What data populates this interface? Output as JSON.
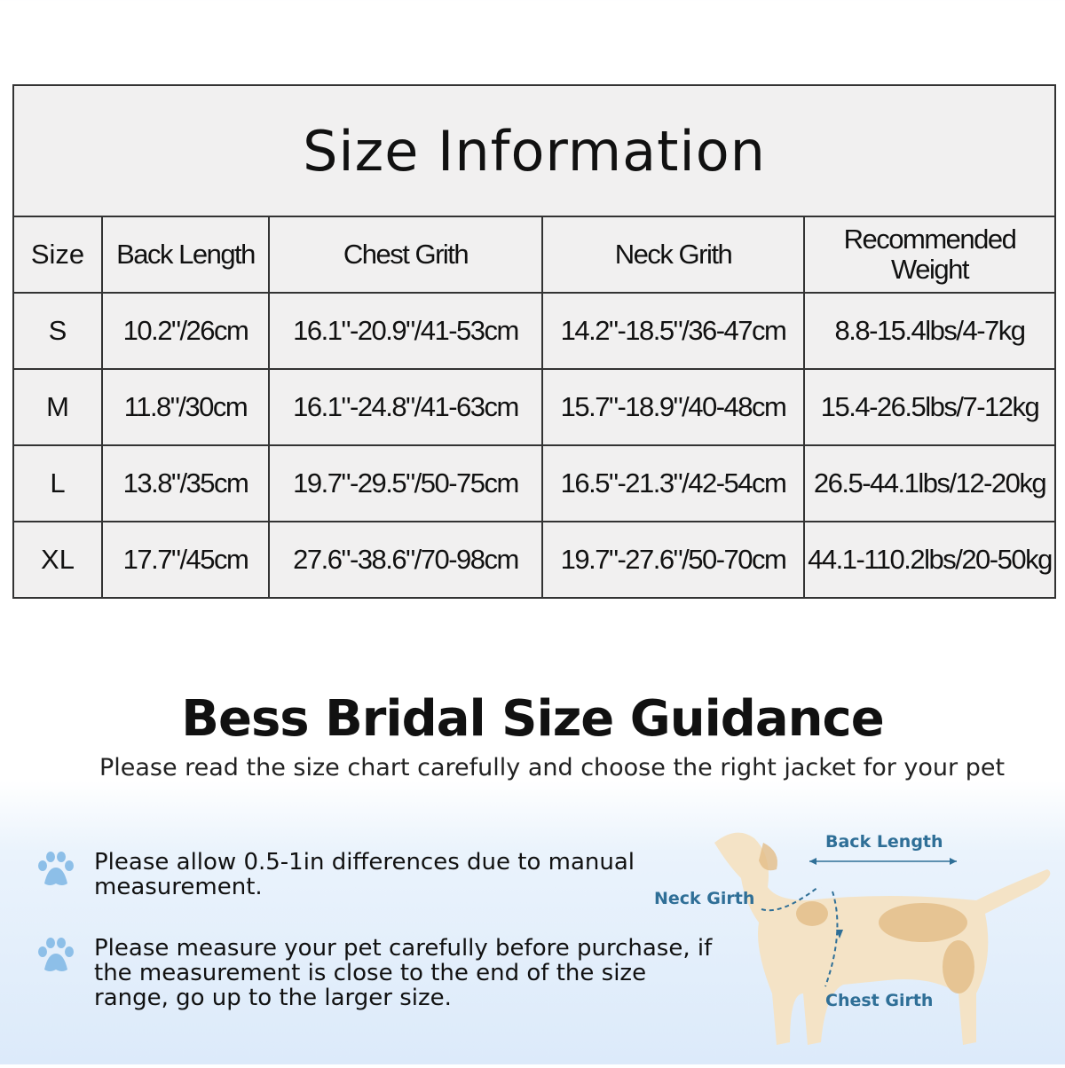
{
  "table": {
    "title": "Size Information",
    "headers": [
      "Size",
      "Back Length",
      "Chest Grith",
      "Neck Grith",
      "Recommended Weight"
    ],
    "rows": [
      [
        "S",
        "10.2\"/26cm",
        "16.1\"-20.9\"/41-53cm",
        "14.2\"-18.5\"/36-47cm",
        "8.8-15.4lbs/4-7kg"
      ],
      [
        "M",
        "11.8\"/30cm",
        "16.1\"-24.8\"/41-63cm",
        "15.7\"-18.9\"/40-48cm",
        "15.4-26.5lbs/7-12kg"
      ],
      [
        "L",
        "13.8\"/35cm",
        "19.7\"-29.5\"/50-75cm",
        "16.5\"-21.3\"/42-54cm",
        "26.5-44.1lbs/12-20kg"
      ],
      [
        "XL",
        "17.7\"/45cm",
        "27.6\"-38.6\"/70-98cm",
        "19.7\"-27.6\"/50-70cm",
        "44.1-110.2lbs/20-50kg"
      ]
    ]
  },
  "guidance": {
    "title": "Bess Bridal Size Guidance",
    "subtitle": "Please read the size chart carefully and choose the right jacket for your pet",
    "bullets": [
      "Please allow 0.5-1in differences due to manual measurement.",
      "Please measure your pet carefully before purchase, if the measurement is close to the end of the size range, go up to the larger size."
    ],
    "bullet_icon": "paw-icon",
    "diagram_labels": {
      "back": "Back Length",
      "neck": "Neck Girth",
      "chest": "Chest Girth"
    }
  },
  "colors": {
    "paw": "#8dbfe8",
    "label": "#2f6f97",
    "dog": "#f2dcb8",
    "dog_patch": "#dfb27a"
  }
}
